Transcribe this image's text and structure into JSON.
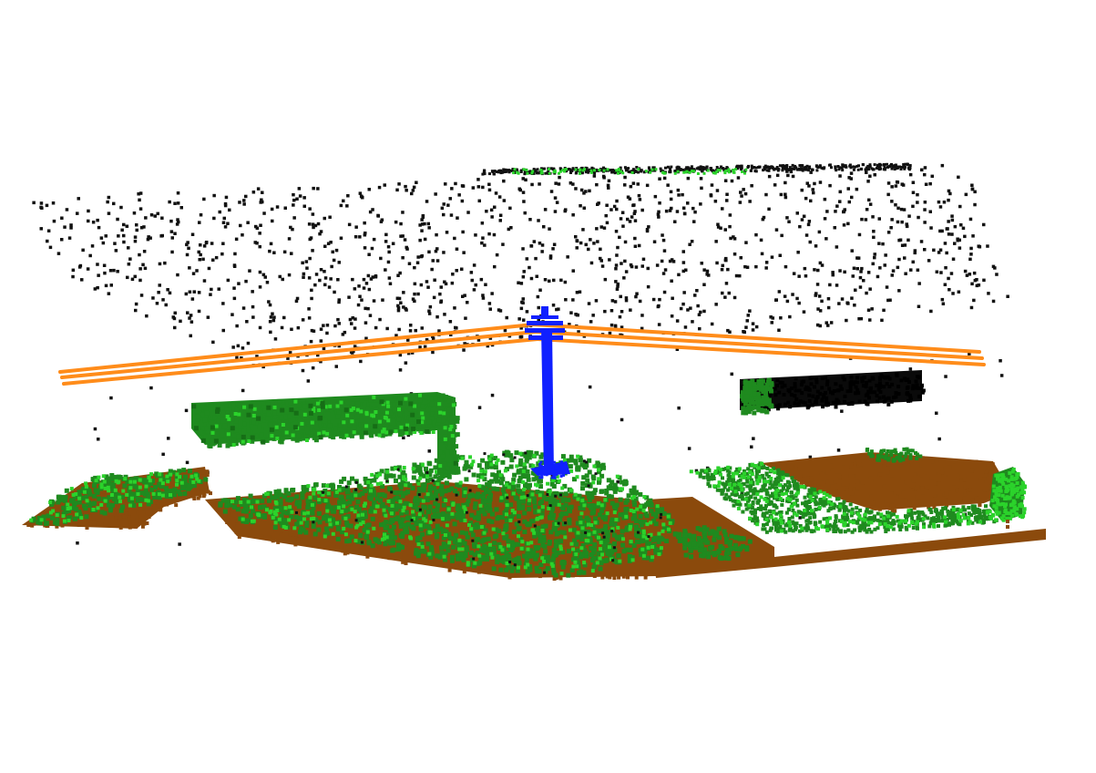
{
  "scene": {
    "type": "lidar-point-cloud",
    "background": "#ffffff",
    "classes": [
      {
        "name": "noise",
        "color": "#111111"
      },
      {
        "name": "ground",
        "color": "#8b4a0c"
      },
      {
        "name": "low-vegetation",
        "color": "#1f8a1f"
      },
      {
        "name": "high-vegetation",
        "color": "#2bd32b"
      },
      {
        "name": "power-lines",
        "color": "#ff8c1a"
      },
      {
        "name": "utility-pole",
        "color": "#1020ff"
      }
    ]
  }
}
